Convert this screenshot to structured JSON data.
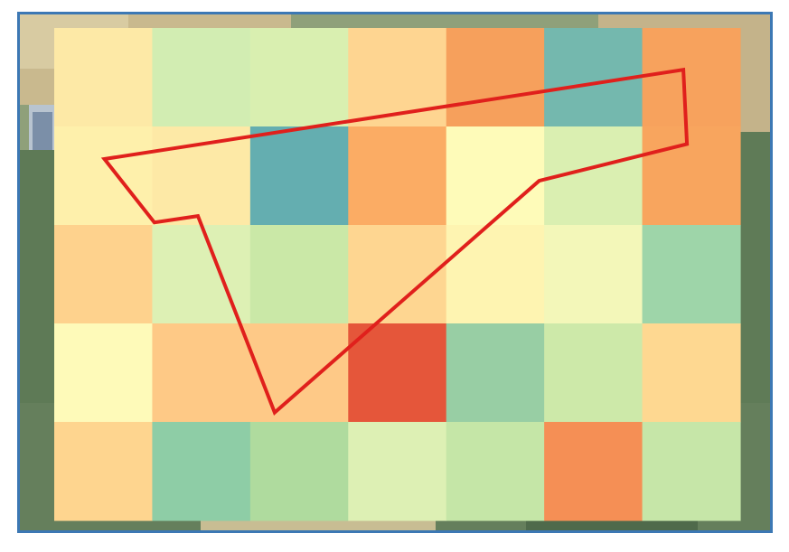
{
  "map": {
    "frame_color": "#3c78b4",
    "boundary_color": "#e0201c",
    "grid": {
      "rows": 5,
      "cols": 7,
      "cells": [
        [
          "#fde9a6",
          "#d2edb2",
          "#d9efb0",
          "#fed591",
          "#f6a05c",
          "#74b8ae",
          "#f7a25d"
        ],
        [
          "#fef0ab",
          "#fde9a6",
          "#64aeb0",
          "#fbac64",
          "#fefbb9",
          "#daefb1",
          "#f8a55e"
        ],
        [
          "#fed28d",
          "#ddf0b4",
          "#cae8a7",
          "#fed691",
          "#fef4b1",
          "#f3f7b9",
          "#9ed5a9"
        ],
        [
          "#fefab9",
          "#fec986",
          "#fec987",
          "#e5563a",
          "#98cea4",
          "#cde9a9",
          "#fed891"
        ],
        [
          "#fed58f",
          "#8ecda6",
          "#afdb9e",
          "#ddf0b4",
          "#c5e6a7",
          "#f58f55",
          "#c6e6a8"
        ]
      ]
    },
    "boundary_points": [
      [
        0.1127,
        0.2802
      ],
      [
        0.8844,
        0.1072
      ],
      [
        0.8893,
        0.2513
      ],
      [
        0.6923,
        0.3224
      ],
      [
        0.3396,
        0.7716
      ],
      [
        0.2374,
        0.3907
      ],
      [
        0.1793,
        0.4031
      ]
    ]
  }
}
